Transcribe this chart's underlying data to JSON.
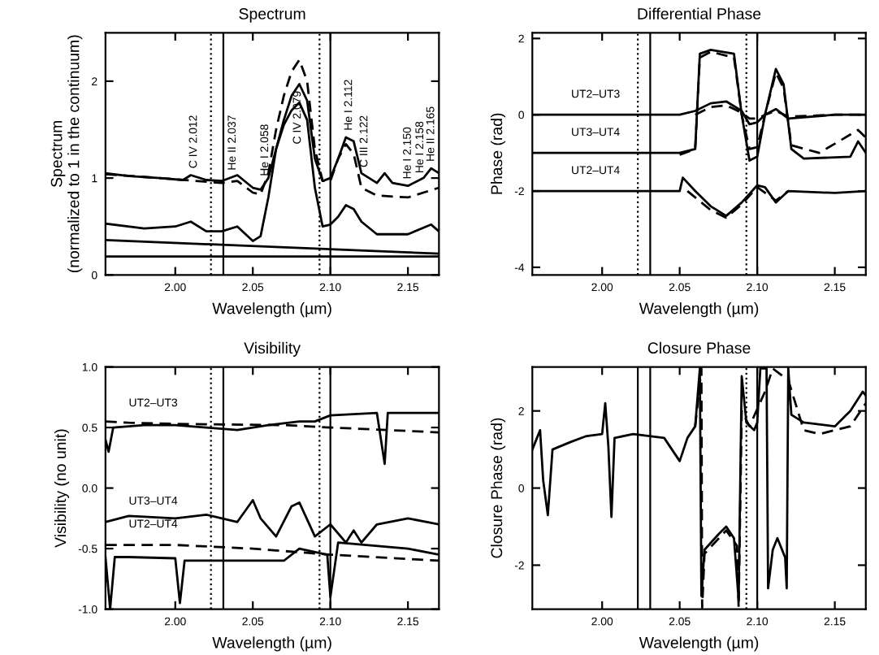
{
  "chart_data": [
    {
      "type": "line",
      "title": "Spectrum",
      "xlabel": "Wavelength (µm)",
      "ylabel": "Spectrum\n(normalized to 1 in the continuum)",
      "xlim": [
        1.955,
        2.17
      ],
      "xticks": [
        {
          "value": 2.0,
          "label": "2.00"
        },
        {
          "value": 2.05,
          "label": "2.05"
        },
        {
          "value": 2.1,
          "label": "2.10"
        },
        {
          "value": 2.15,
          "label": "2.15"
        }
      ],
      "ylim": [
        0,
        2.5
      ],
      "yticks": [
        0,
        1,
        2
      ],
      "grid": false,
      "legend": false,
      "series": [
        {
          "color": "#000000",
          "line_style": "solid",
          "x": [
            1.955,
            1.97,
            1.99,
            2.005,
            2.01,
            2.02,
            2.03,
            2.04,
            2.05,
            2.055,
            2.06,
            2.065,
            2.07,
            2.075,
            2.08,
            2.085,
            2.09,
            2.095,
            2.1,
            2.105,
            2.11,
            2.115,
            2.12,
            2.13,
            2.135,
            2.14,
            2.15,
            2.16,
            2.165,
            2.17
          ],
          "values": [
            1.05,
            1.02,
            1.0,
            0.98,
            1.03,
            0.98,
            0.97,
            1.03,
            0.9,
            0.88,
            1.0,
            1.3,
            1.6,
            1.85,
            1.97,
            1.8,
            1.2,
            0.97,
            1.0,
            1.2,
            1.42,
            1.38,
            1.05,
            0.95,
            1.05,
            0.95,
            0.92,
            1.0,
            1.1,
            1.05
          ]
        },
        {
          "color": "#000000",
          "line_style": "dashed",
          "x": [
            1.955,
            1.99,
            2.03,
            2.04,
            2.05,
            2.055,
            2.06,
            2.065,
            2.07,
            2.075,
            2.08,
            2.085,
            2.09,
            2.095,
            2.1,
            2.105,
            2.11,
            2.115,
            2.12,
            2.13,
            2.15,
            2.16,
            2.17
          ],
          "values": [
            1.04,
            1.0,
            0.95,
            0.97,
            0.85,
            0.83,
            1.05,
            1.5,
            1.85,
            2.1,
            2.22,
            2.0,
            1.3,
            0.97,
            0.97,
            1.2,
            1.35,
            1.25,
            0.9,
            0.82,
            0.8,
            0.85,
            0.9
          ]
        },
        {
          "color": "#000000",
          "line_style": "solid",
          "x": [
            1.955,
            1.98,
            2.0,
            2.01,
            2.02,
            2.03,
            2.04,
            2.05,
            2.055,
            2.06,
            2.065,
            2.07,
            2.075,
            2.08,
            2.085,
            2.09,
            2.095,
            2.1,
            2.105,
            2.11,
            2.115,
            2.12,
            2.13,
            2.15,
            2.165,
            2.17
          ],
          "values": [
            0.53,
            0.48,
            0.5,
            0.55,
            0.45,
            0.45,
            0.5,
            0.35,
            0.4,
            0.8,
            1.3,
            1.55,
            1.7,
            1.78,
            1.6,
            0.9,
            0.5,
            0.52,
            0.6,
            0.72,
            0.68,
            0.55,
            0.42,
            0.42,
            0.52,
            0.45
          ]
        },
        {
          "color": "#000000",
          "line_style": "solid",
          "x": [
            1.955,
            2.17
          ],
          "values": [
            0.36,
            0.22
          ]
        },
        {
          "color": "#000000",
          "line_style": "solid",
          "x": [
            1.955,
            2.17
          ],
          "values": [
            0.19,
            0.19
          ]
        }
      ],
      "ref_lines": [
        {
          "axis": "x",
          "value": 2.023,
          "line_style": "dotted"
        },
        {
          "axis": "x",
          "value": 2.031,
          "line_style": "solid"
        },
        {
          "axis": "x",
          "value": 2.093,
          "line_style": "dotted"
        },
        {
          "axis": "x",
          "value": 2.1,
          "line_style": "solid"
        }
      ],
      "annotations": [
        {
          "text": "C IV 2.012",
          "x": 2.012,
          "y": 1.03
        },
        {
          "text": "He II 2.037",
          "x": 2.037,
          "y": 1.01
        },
        {
          "text": "He I 2.058",
          "x": 2.058,
          "y": 0.95
        },
        {
          "text": "C IV 2.079",
          "x": 2.079,
          "y": 1.97
        },
        {
          "text": "He I 2.112",
          "x": 2.112,
          "y": 1.42
        },
        {
          "text": "C III 2.122",
          "x": 2.122,
          "y": 1.04
        },
        {
          "text": "He I 2.150",
          "x": 2.15,
          "y": 0.92
        },
        {
          "text": "He I 2.158",
          "x": 2.158,
          "y": 0.98
        },
        {
          "text": "He II 2.165",
          "x": 2.165,
          "y": 1.1
        }
      ]
    },
    {
      "type": "line",
      "title": "Differential Phase",
      "xlabel": "Wavelength (µm)",
      "ylabel": "Phase (rad)",
      "xlim": [
        1.955,
        2.17
      ],
      "xticks": [
        {
          "value": 2.0,
          "label": "2.00"
        },
        {
          "value": 2.05,
          "label": "2.05"
        },
        {
          "value": 2.1,
          "label": "2.10"
        },
        {
          "value": 2.15,
          "label": "2.15"
        }
      ],
      "ylim": [
        -4.2,
        2.15
      ],
      "yticks": [
        -4,
        -2,
        0,
        2
      ],
      "grid": false,
      "legend": false,
      "series": [
        {
          "color": "#000000",
          "line_style": "solid",
          "x": [
            1.955,
            2.0,
            2.05,
            2.06,
            2.07,
            2.08,
            2.09,
            2.095,
            2.1,
            2.105,
            2.112,
            2.12,
            2.15,
            2.17
          ],
          "values": [
            0,
            0,
            0,
            0.1,
            0.3,
            0.35,
            0.1,
            -0.25,
            -0.2,
            0,
            0.15,
            -0.1,
            0,
            0
          ]
        },
        {
          "color": "#000000",
          "line_style": "dashed",
          "x": [
            2.06,
            2.07,
            2.08,
            2.09,
            2.095,
            2.1,
            2.105,
            2.112,
            2.12,
            2.15,
            2.17
          ],
          "values": [
            0.0,
            0.2,
            0.25,
            0.05,
            -0.1,
            -0.1,
            0,
            0.1,
            -0.05,
            0,
            0
          ]
        },
        {
          "color": "#000000",
          "line_style": "solid",
          "x": [
            1.955,
            2.0,
            2.05,
            2.06,
            2.063,
            2.07,
            2.085,
            2.09,
            2.095,
            2.1,
            2.105,
            2.112,
            2.117,
            2.122,
            2.13,
            2.16,
            2.165,
            2.17
          ],
          "values": [
            -1.0,
            -1.0,
            -1.0,
            -0.9,
            1.6,
            1.7,
            1.6,
            0.0,
            -1.2,
            -1.1,
            0.0,
            1.2,
            0.8,
            -0.9,
            -1.15,
            -1.1,
            -0.7,
            -1.0
          ]
        },
        {
          "color": "#000000",
          "line_style": "dashed",
          "x": [
            2.05,
            2.06,
            2.063,
            2.07,
            2.085,
            2.09,
            2.095,
            2.1,
            2.105,
            2.112,
            2.117,
            2.122,
            2.14,
            2.165,
            2.17
          ],
          "values": [
            -1.05,
            -0.9,
            1.5,
            1.65,
            1.5,
            0.0,
            -0.9,
            -0.85,
            0.0,
            1.1,
            0.7,
            -0.8,
            -1.0,
            -0.4,
            -0.6
          ]
        },
        {
          "color": "#000000",
          "line_style": "solid",
          "x": [
            1.955,
            2.0,
            2.05,
            2.052,
            2.06,
            2.07,
            2.08,
            2.09,
            2.1,
            2.105,
            2.112,
            2.12,
            2.15,
            2.17
          ],
          "values": [
            -2.0,
            -2.0,
            -2.0,
            -1.65,
            -2.0,
            -2.4,
            -2.65,
            -2.3,
            -1.85,
            -1.9,
            -2.3,
            -2.0,
            -2.05,
            -2.0
          ]
        },
        {
          "color": "#000000",
          "line_style": "dashed",
          "x": [
            2.055,
            2.07,
            2.08,
            2.09,
            2.1,
            2.112,
            2.12
          ],
          "values": [
            -2.0,
            -2.5,
            -2.7,
            -2.35,
            -1.9,
            -2.25,
            -2.0
          ]
        }
      ],
      "ref_lines": [
        {
          "axis": "x",
          "value": 2.023,
          "line_style": "dotted"
        },
        {
          "axis": "x",
          "value": 2.031,
          "line_style": "solid"
        },
        {
          "axis": "x",
          "value": 2.093,
          "line_style": "dotted"
        },
        {
          "axis": "x",
          "value": 2.1,
          "line_style": "solid"
        }
      ],
      "annotations": [
        {
          "text": "UT2–UT3",
          "x": 1.98,
          "y": 0.15
        },
        {
          "text": "UT3–UT4",
          "x": 1.98,
          "y": -0.85
        },
        {
          "text": "UT2–UT4",
          "x": 1.98,
          "y": -1.85
        }
      ]
    },
    {
      "type": "line",
      "title": "Visibility",
      "xlabel": "Wavelength (µm)",
      "ylabel": "Visibility (no unit)",
      "xlim": [
        1.955,
        2.17
      ],
      "xticks": [
        {
          "value": 2.0,
          "label": "2.00"
        },
        {
          "value": 2.05,
          "label": "2.05"
        },
        {
          "value": 2.1,
          "label": "2.10"
        },
        {
          "value": 2.15,
          "label": "2.15"
        }
      ],
      "ylim": [
        -1,
        1
      ],
      "yticks": [
        {
          "value": -1,
          "label": "-1.0"
        },
        {
          "value": -0.5,
          "label": "-0.5"
        },
        {
          "value": 0,
          "label": "0.0"
        },
        {
          "value": 0.5,
          "label": "0.5"
        },
        {
          "value": 1,
          "label": "1.0"
        }
      ],
      "grid": false,
      "legend": false,
      "series": [
        {
          "color": "#000000",
          "line_style": "solid",
          "x": [
            1.955,
            1.957,
            1.96,
            1.98,
            2.0,
            2.02,
            2.04,
            2.06,
            2.08,
            2.09,
            2.1,
            2.13,
            2.135,
            2.137,
            2.17
          ],
          "values": [
            0.4,
            0.3,
            0.5,
            0.52,
            0.52,
            0.5,
            0.48,
            0.52,
            0.55,
            0.55,
            0.6,
            0.62,
            0.2,
            0.62,
            0.62
          ]
        },
        {
          "color": "#000000",
          "line_style": "dashed",
          "x": [
            1.955,
            1.97,
            2.0,
            2.07,
            2.1,
            2.17
          ],
          "values": [
            0.55,
            0.54,
            0.53,
            0.52,
            0.5,
            0.46
          ]
        },
        {
          "color": "#000000",
          "line_style": "solid",
          "x": [
            1.955,
            1.97,
            2.0,
            2.02,
            2.04,
            2.05,
            2.055,
            2.065,
            2.075,
            2.08,
            2.09,
            2.1,
            2.11,
            2.115,
            2.12,
            2.13,
            2.15,
            2.17
          ],
          "values": [
            -0.28,
            -0.23,
            -0.25,
            -0.22,
            -0.28,
            -0.1,
            -0.25,
            -0.4,
            -0.15,
            -0.12,
            -0.4,
            -0.3,
            -0.45,
            -0.35,
            -0.45,
            -0.3,
            -0.25,
            -0.3
          ]
        },
        {
          "color": "#000000",
          "line_style": "solid",
          "x": [
            1.955,
            1.958,
            1.961,
            1.97,
            2.0,
            2.003,
            2.006,
            2.04,
            2.07,
            2.08,
            2.098,
            2.1,
            2.105,
            2.15,
            2.17
          ],
          "values": [
            -0.57,
            -1.0,
            -0.57,
            -0.57,
            -0.58,
            -0.95,
            -0.6,
            -0.6,
            -0.6,
            -0.5,
            -0.55,
            -0.9,
            -0.45,
            -0.5,
            -0.55
          ]
        },
        {
          "color": "#000000",
          "line_style": "dashed",
          "x": [
            1.955,
            2.0,
            2.05,
            2.1,
            2.17
          ],
          "values": [
            -0.47,
            -0.47,
            -0.5,
            -0.55,
            -0.6
          ]
        }
      ],
      "ref_lines": [
        {
          "axis": "x",
          "value": 2.023,
          "line_style": "dotted"
        },
        {
          "axis": "x",
          "value": 2.031,
          "line_style": "solid"
        },
        {
          "axis": "x",
          "value": 2.093,
          "line_style": "dotted"
        },
        {
          "axis": "x",
          "value": 2.1,
          "line_style": "solid"
        }
      ],
      "annotations": [
        {
          "text": "UT2–UT3",
          "x": 1.97,
          "y": 0.58
        },
        {
          "text": "UT3–UT4",
          "x": 1.97,
          "y": -0.23
        },
        {
          "text": "UT2–UT4",
          "x": 1.97,
          "y": -0.42
        }
      ]
    },
    {
      "type": "line",
      "title": "Closure Phase",
      "xlabel": "Wavelength (µm)",
      "ylabel": "Closure Phase (rad)",
      "xlim": [
        1.955,
        2.17
      ],
      "xticks": [
        {
          "value": 2.0,
          "label": "2.00"
        },
        {
          "value": 2.05,
          "label": "2.05"
        },
        {
          "value": 2.1,
          "label": "2.10"
        },
        {
          "value": 2.15,
          "label": "2.15"
        }
      ],
      "ylim": [
        -3.14,
        3.14
      ],
      "yticks": [
        -2,
        0,
        2
      ],
      "grid": false,
      "legend": false,
      "series": [
        {
          "color": "#000000",
          "line_style": "solid",
          "x": [
            1.955,
            1.96,
            1.962,
            1.965,
            1.968,
            1.98,
            1.99,
            2.0,
            2.002,
            2.004,
            2.006,
            2.008,
            2.02,
            2.04,
            2.05,
            2.055,
            2.06,
            2.063,
            2.064,
            2.066,
            2.075,
            2.08,
            2.085,
            2.088,
            2.09,
            2.093,
            2.098,
            2.1,
            2.102,
            2.106,
            2.107,
            2.11,
            2.113,
            2.118,
            2.119,
            2.12,
            2.122,
            2.13,
            2.15,
            2.16,
            2.168,
            2.17
          ],
          "values": [
            1.0,
            1.5,
            0.2,
            -0.7,
            1.0,
            1.2,
            1.35,
            1.4,
            2.2,
            1.1,
            -0.75,
            1.3,
            1.4,
            1.3,
            0.7,
            1.3,
            1.6,
            3.1,
            -2.8,
            -1.6,
            -1.2,
            -1.0,
            -1.3,
            -2.9,
            2.9,
            1.7,
            1.5,
            1.7,
            3.1,
            3.1,
            -2.6,
            -1.6,
            -1.3,
            -1.8,
            -2.6,
            3.1,
            1.9,
            1.7,
            1.6,
            2.0,
            2.5,
            2.4
          ]
        },
        {
          "color": "#000000",
          "line_style": "dashed",
          "x": [
            2.06,
            2.064,
            2.0645,
            2.066,
            2.08,
            2.087,
            2.088,
            2.09,
            2.095,
            2.105,
            2.11,
            2.12,
            2.13,
            2.14,
            2.16,
            2.17
          ],
          "values": [
            1.6,
            3.1,
            -3.1,
            -1.7,
            -1.1,
            -1.5,
            -3.1,
            2.0,
            1.6,
            2.5,
            3.1,
            2.8,
            1.5,
            1.4,
            1.6,
            2.2
          ]
        }
      ],
      "ref_lines": [
        {
          "axis": "x",
          "value": 2.023,
          "line_style": "solid"
        },
        {
          "axis": "x",
          "value": 2.031,
          "line_style": "solid"
        },
        {
          "axis": "x",
          "value": 2.093,
          "line_style": "dotted"
        },
        {
          "axis": "x",
          "value": 2.1,
          "line_style": "solid"
        }
      ]
    }
  ]
}
